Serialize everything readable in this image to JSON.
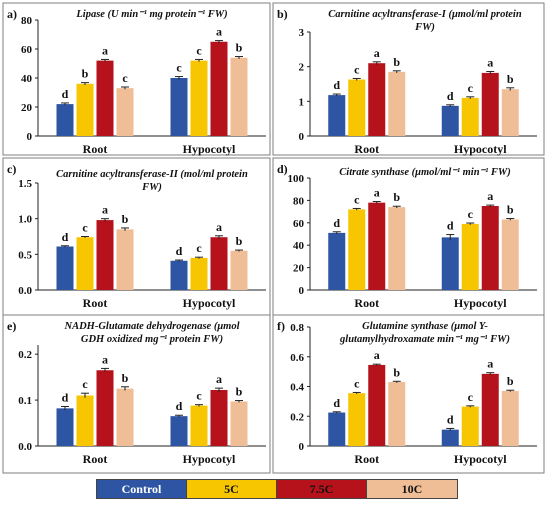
{
  "colors": {
    "series": [
      "#2E55A3",
      "#F7C600",
      "#B5121B",
      "#F0BE96"
    ],
    "frame": "#7f7f7f",
    "axis": "#222222"
  },
  "legend": [
    "Control",
    "5C",
    "7.5C",
    "10C"
  ],
  "chart_data": [
    {
      "type": "bar",
      "panel_label": "a)",
      "title": "Lipase (U min⁻¹ mg protein⁻¹ FW)",
      "title_lines": [
        "Lipase (U min⁻¹ mg protein⁻¹ FW)"
      ],
      "categories": [
        "Root",
        "Hypocotyl"
      ],
      "series": [
        {
          "name": "Control",
          "values": [
            22,
            40
          ]
        },
        {
          "name": "5C",
          "values": [
            36,
            52
          ]
        },
        {
          "name": "7.5C",
          "values": [
            52,
            65
          ]
        },
        {
          "name": "10C",
          "values": [
            33,
            54
          ]
        }
      ],
      "errors": [
        [
          0.8,
          1.0
        ],
        [
          0.8,
          0.8
        ],
        [
          0.8,
          0.8
        ],
        [
          0.8,
          0.8
        ]
      ],
      "letters": [
        [
          "d",
          "c"
        ],
        [
          "b",
          "c"
        ],
        [
          "a",
          "a"
        ],
        [
          "c",
          "b"
        ]
      ],
      "ylim": [
        0,
        80
      ],
      "yticks": [
        "0",
        "20",
        "40",
        "60",
        "80"
      ]
    },
    {
      "type": "bar",
      "panel_label": "b)",
      "title": "Carnitine acyltransferase-I (μmol/ml protein FW)",
      "title_lines": [
        "Carnitine acyltransferase-I (μmol/ml protein",
        "FW)"
      ],
      "categories": [
        "Root",
        "Hypocotyl"
      ],
      "series": [
        {
          "name": "Control",
          "values": [
            1.18,
            0.87
          ]
        },
        {
          "name": "5C",
          "values": [
            1.63,
            1.1
          ]
        },
        {
          "name": "7.5C",
          "values": [
            2.1,
            1.82
          ]
        },
        {
          "name": "10C",
          "values": [
            1.85,
            1.35
          ]
        }
      ],
      "errors": [
        [
          0.03,
          0.03
        ],
        [
          0.03,
          0.03
        ],
        [
          0.04,
          0.04
        ],
        [
          0.03,
          0.04
        ]
      ],
      "letters": [
        [
          "d",
          "d"
        ],
        [
          "c",
          "c"
        ],
        [
          "a",
          "a"
        ],
        [
          "b",
          "b"
        ]
      ],
      "ylim": [
        0,
        3
      ],
      "yticks": [
        "0",
        "1",
        "2",
        "3"
      ]
    },
    {
      "type": "bar",
      "panel_label": "c)",
      "title": "Carnitine acyltransferase-II (mol/ml protein FW)",
      "title_lines": [
        "Carnitine acyltransferase-II (mol/ml protein",
        "FW)"
      ],
      "categories": [
        "Root",
        "Hypocotyl"
      ],
      "series": [
        {
          "name": "Control",
          "values": [
            0.61,
            0.41
          ]
        },
        {
          "name": "5C",
          "values": [
            0.74,
            0.45
          ]
        },
        {
          "name": "7.5C",
          "values": [
            0.98,
            0.74
          ]
        },
        {
          "name": "10C",
          "values": [
            0.85,
            0.55
          ]
        }
      ],
      "errors": [
        [
          0.01,
          0.01
        ],
        [
          0.01,
          0.01
        ],
        [
          0.02,
          0.02
        ],
        [
          0.02,
          0.01
        ]
      ],
      "letters": [
        [
          "d",
          "d"
        ],
        [
          "c",
          "c"
        ],
        [
          "a",
          "a"
        ],
        [
          "b",
          "b"
        ]
      ],
      "ylim": [
        0,
        1.5
      ],
      "yticks": [
        "0.0",
        "0.5",
        "1.0",
        "1.5"
      ]
    },
    {
      "type": "bar",
      "panel_label": "d)",
      "title": "Citrate synthase (μmol/ml⁻¹ min⁻¹ FW)",
      "title_lines": [
        "Citrate synthase (μmol/ml⁻¹ min⁻¹ FW)"
      ],
      "categories": [
        "Root",
        "Hypocotyl"
      ],
      "series": [
        {
          "name": "Control",
          "values": [
            51,
            47
          ]
        },
        {
          "name": "5C",
          "values": [
            72,
            59
          ]
        },
        {
          "name": "7.5C",
          "values": [
            78,
            75
          ]
        },
        {
          "name": "10C",
          "values": [
            74,
            63
          ]
        }
      ],
      "errors": [
        [
          1.0,
          2.5
        ],
        [
          0.8,
          0.8
        ],
        [
          1.0,
          0.8
        ],
        [
          0.8,
          0.8
        ]
      ],
      "letters": [
        [
          "d",
          "d"
        ],
        [
          "c",
          "c"
        ],
        [
          "a",
          "a"
        ],
        [
          "b",
          "b"
        ]
      ],
      "ylim": [
        0,
        100
      ],
      "yticks": [
        "0",
        "20",
        "40",
        "60",
        "80",
        "100"
      ]
    },
    {
      "type": "bar",
      "panel_label": "e)",
      "title": "NADH-Glutamate dehydrogenase (μmol GDH oxidized mg⁻¹ protein FW)",
      "title_lines": [
        "NADH-Glutamate dehydrogenase (μmol",
        "GDH oxidized mg⁻¹ protein FW)"
      ],
      "categories": [
        "Root",
        "Hypocotyl"
      ],
      "series": [
        {
          "name": "Control",
          "values": [
            0.082,
            0.065
          ]
        },
        {
          "name": "5C",
          "values": [
            0.11,
            0.088
          ]
        },
        {
          "name": "7.5C",
          "values": [
            0.165,
            0.122
          ]
        },
        {
          "name": "10C",
          "values": [
            0.125,
            0.097
          ]
        }
      ],
      "errors": [
        [
          0.004,
          0.002
        ],
        [
          0.005,
          0.002
        ],
        [
          0.004,
          0.004
        ],
        [
          0.004,
          0.002
        ]
      ],
      "letters": [
        [
          "d",
          "d"
        ],
        [
          "c",
          "c"
        ],
        [
          "a",
          "a"
        ],
        [
          "b",
          "b"
        ]
      ],
      "ylim": [
        0,
        0.22
      ],
      "yticks": [
        "0.0",
        "0.1",
        "0.2"
      ]
    },
    {
      "type": "bar",
      "panel_label": "f)",
      "title": "Glutamine synthase (μmol Y-glutamylhydroxamate min⁻¹ mg⁻¹ FW)",
      "title_lines": [
        "Glutamine synthase (μmol Y-",
        "glutamylhydroxamate min⁻¹  mg⁻¹  FW)"
      ],
      "categories": [
        "Root",
        "Hypocotyl"
      ],
      "series": [
        {
          "name": "Control",
          "values": [
            0.225,
            0.11
          ]
        },
        {
          "name": "5C",
          "values": [
            0.355,
            0.265
          ]
        },
        {
          "name": "7.5C",
          "values": [
            0.545,
            0.485
          ]
        },
        {
          "name": "10C",
          "values": [
            0.43,
            0.37
          ]
        }
      ],
      "errors": [
        [
          0.005,
          0.008
        ],
        [
          0.005,
          0.005
        ],
        [
          0.005,
          0.008
        ],
        [
          0.005,
          0.005
        ]
      ],
      "letters": [
        [
          "d",
          "d"
        ],
        [
          "c",
          "c"
        ],
        [
          "a",
          "a"
        ],
        [
          "b",
          "b"
        ]
      ],
      "ylim": [
        0,
        0.8
      ],
      "yticks": [
        "0",
        "0.2",
        "0.4",
        "0.6",
        "0.8"
      ]
    }
  ]
}
